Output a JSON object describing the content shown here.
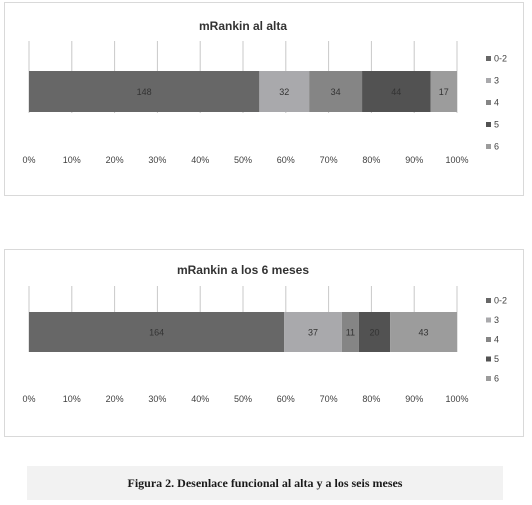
{
  "caption": "Figura 2. Desenlace funcional al alta y a los seis meses",
  "chart_data": [
    {
      "type": "bar",
      "orientation": "horizontal",
      "stacking": "percent",
      "title": "mRankin al alta",
      "xlabel": "",
      "ylabel": "",
      "xlim": [
        0,
        100
      ],
      "x_ticks": [
        "0%",
        "10%",
        "20%",
        "30%",
        "40%",
        "50%",
        "60%",
        "70%",
        "80%",
        "90%",
        "100%"
      ],
      "grid": true,
      "legend_position": "right",
      "series": [
        {
          "name": "0-2",
          "value": 148,
          "color": "#676767"
        },
        {
          "name": "3",
          "value": 32,
          "color": "#a9a9ac"
        },
        {
          "name": "4",
          "value": 34,
          "color": "#858585"
        },
        {
          "name": "5",
          "value": 44,
          "color": "#525252"
        },
        {
          "name": "6",
          "value": 17,
          "color": "#9c9c9c"
        }
      ]
    },
    {
      "type": "bar",
      "orientation": "horizontal",
      "stacking": "percent",
      "title": "mRankin a los 6 meses",
      "xlabel": "",
      "ylabel": "",
      "xlim": [
        0,
        100
      ],
      "x_ticks": [
        "0%",
        "10%",
        "20%",
        "30%",
        "40%",
        "50%",
        "60%",
        "70%",
        "80%",
        "90%",
        "100%"
      ],
      "grid": true,
      "legend_position": "right",
      "series": [
        {
          "name": "0-2",
          "value": 164,
          "color": "#676767"
        },
        {
          "name": "3",
          "value": 37,
          "color": "#a9a9ac"
        },
        {
          "name": "4",
          "value": 11,
          "color": "#858585"
        },
        {
          "name": "5",
          "value": 20,
          "color": "#525252"
        },
        {
          "name": "6",
          "value": 43,
          "color": "#9c9c9c"
        }
      ]
    }
  ]
}
